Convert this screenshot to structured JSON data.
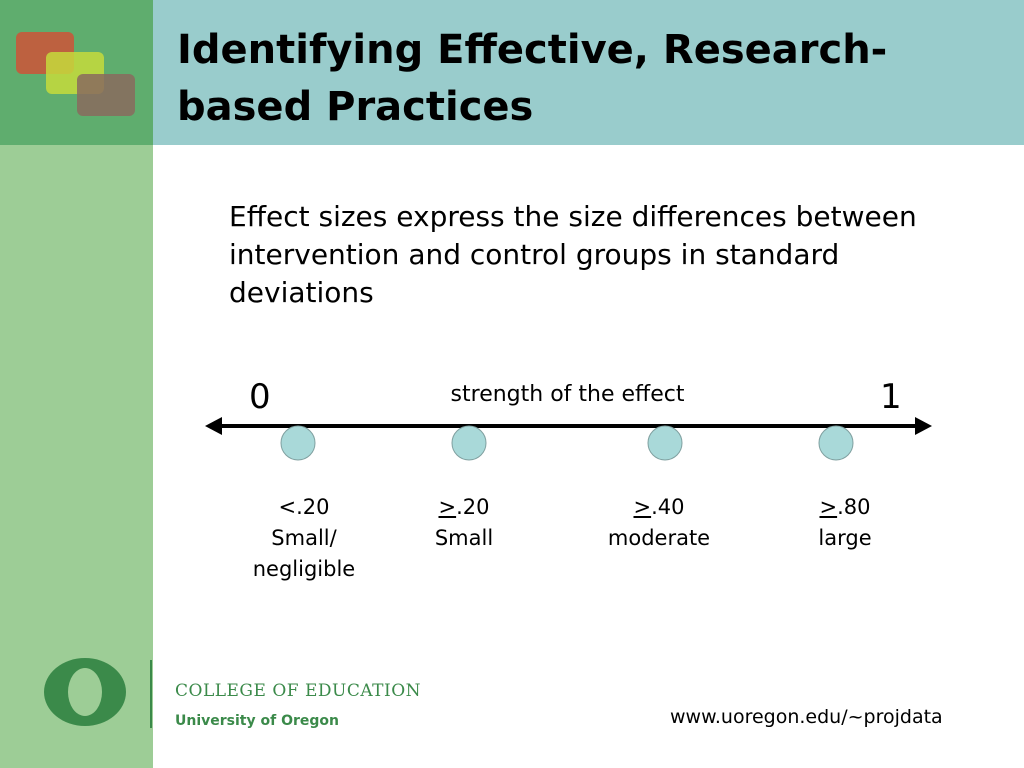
{
  "slide": {
    "title": "Identifying Effective, Research-based Practices",
    "body": "Effect sizes express the size differences between intervention and control groups in standard deviations"
  },
  "scale": {
    "label": "strength of the effect",
    "start": "0",
    "end": "1",
    "categories": [
      {
        "prefix": "",
        "value": "<.20",
        "name": "Small/ negligible"
      },
      {
        "prefix": ">",
        "value": ".20",
        "name": "Small"
      },
      {
        "prefix": ">",
        "value": ".40",
        "name": "moderate"
      },
      {
        "prefix": ">",
        "value": ".80",
        "name": "large"
      }
    ],
    "dot_color": "#a9d9d9"
  },
  "footer": {
    "college": "COLLEGE OF EDUCATION",
    "university": "University of Oregon",
    "url": "www.uoregon.edu/~projdata"
  },
  "colors": {
    "sidebar": "#9dcd96",
    "logo_block": "#5fad6e",
    "title_bar": "#99cccc",
    "brand_green": "#3b8a4a"
  }
}
